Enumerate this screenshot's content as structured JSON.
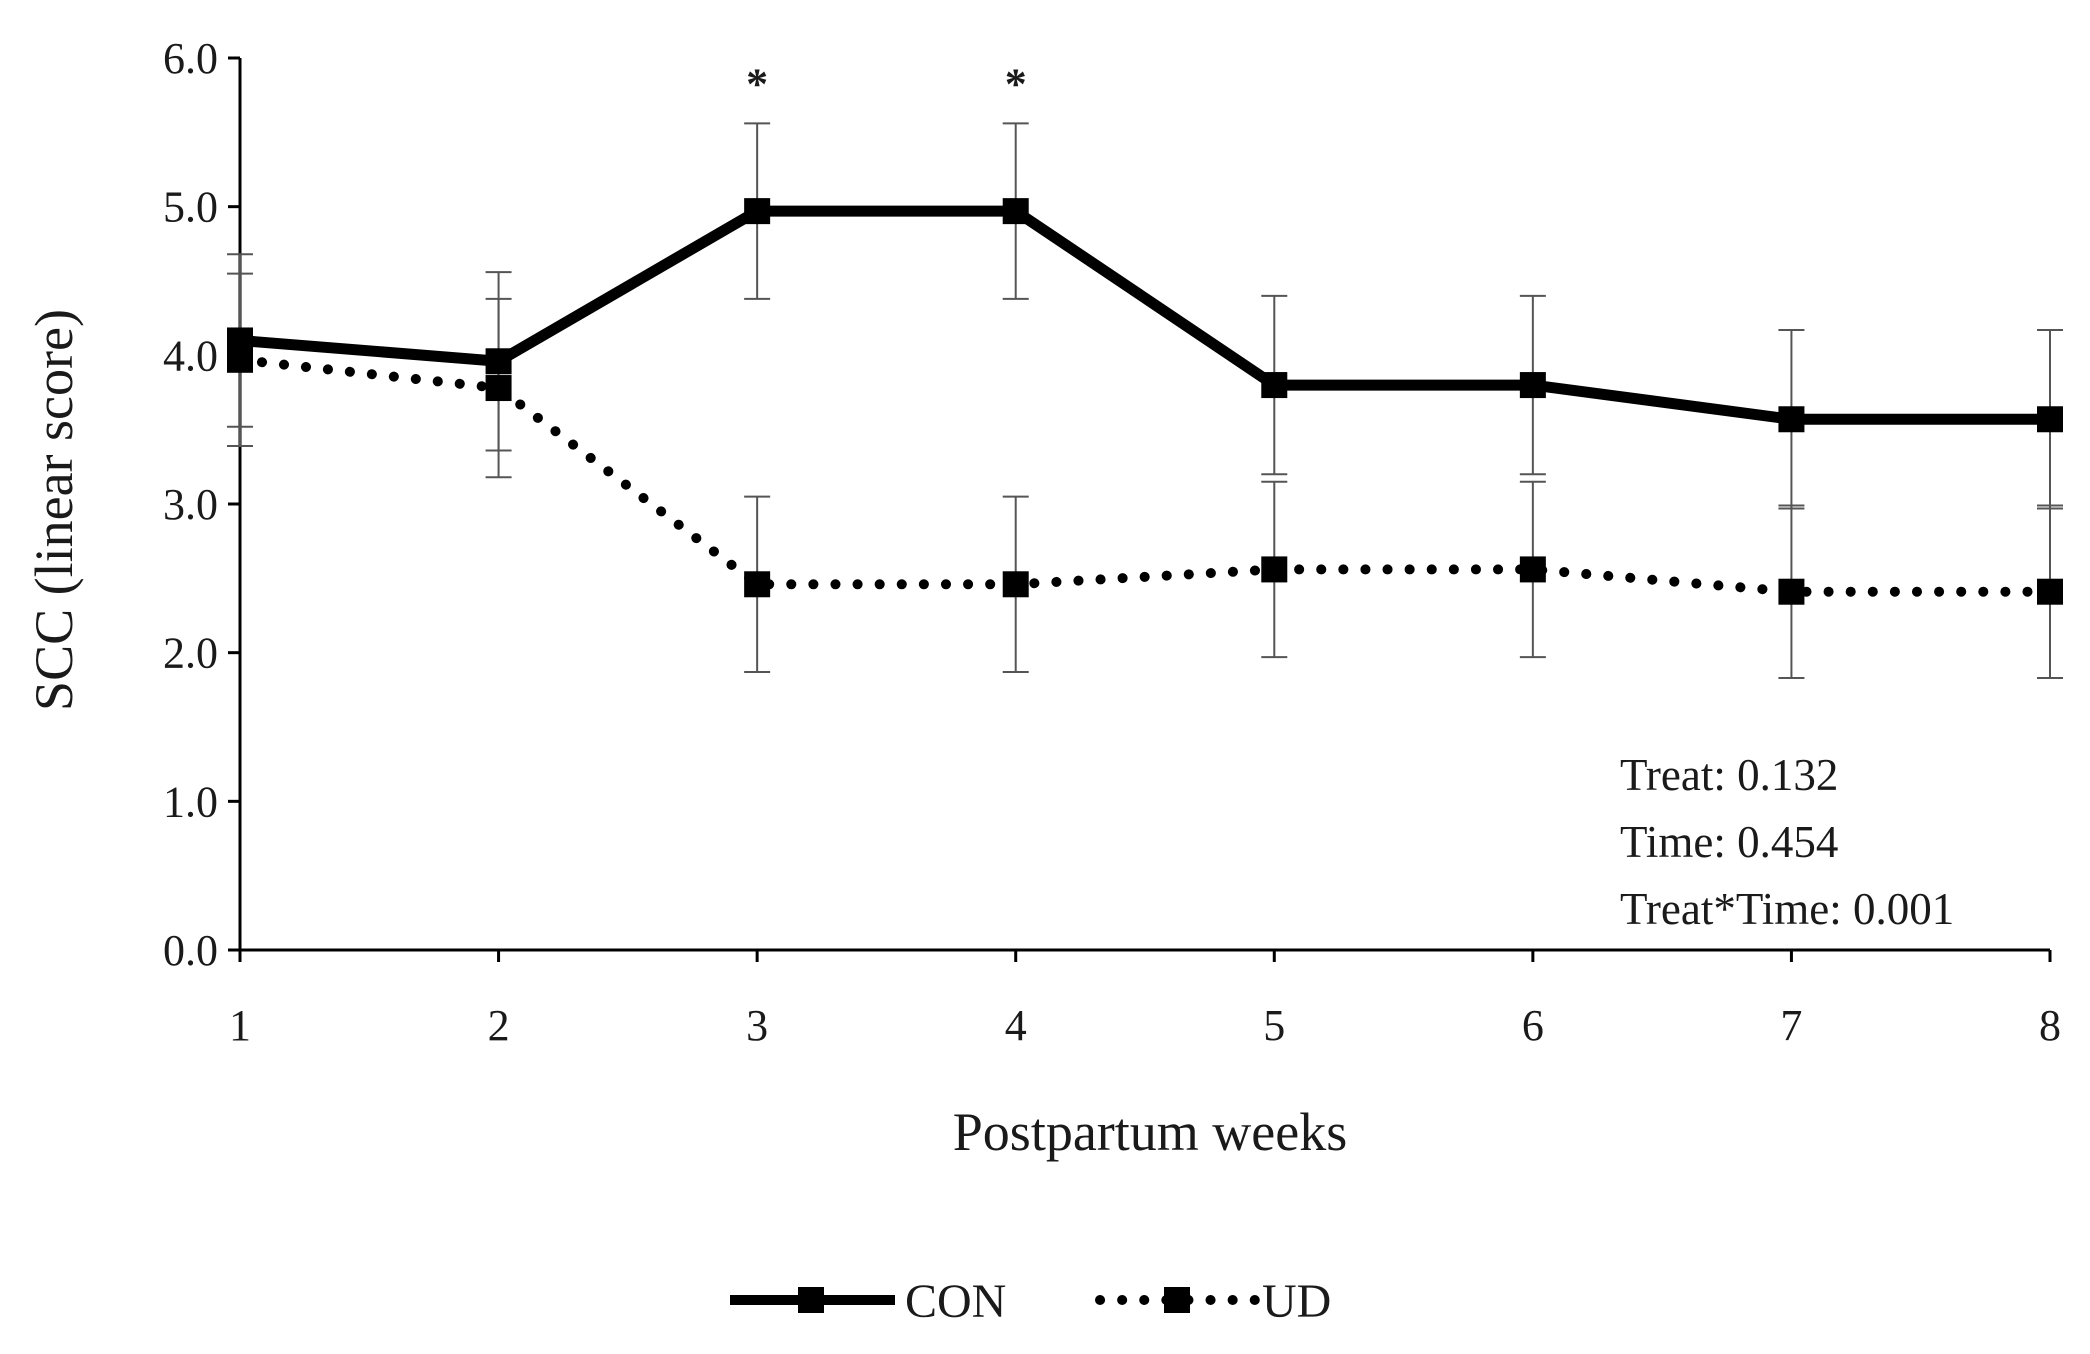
{
  "chart_data": {
    "type": "line",
    "title": "",
    "xlabel": "Postpartum weeks",
    "ylabel": "SCC (linear score)",
    "x": [
      1,
      2,
      3,
      4,
      5,
      6,
      7,
      8
    ],
    "xlim": [
      1,
      8
    ],
    "ylim": [
      0,
      6
    ],
    "y_ticks": [
      "0.0",
      "1.0",
      "2.0",
      "3.0",
      "4.0",
      "5.0",
      "6.0"
    ],
    "x_ticks": [
      "1",
      "2",
      "3",
      "4",
      "5",
      "6",
      "7",
      "8"
    ],
    "grid": false,
    "legend_position": "bottom-center",
    "series": [
      {
        "name": "CON",
        "style": "solid",
        "marker": "square",
        "color": "#000000",
        "values": [
          4.1,
          3.96,
          4.97,
          4.97,
          3.8,
          3.8,
          3.57,
          3.57
        ],
        "error": [
          0.58,
          0.6,
          0.59,
          0.59,
          0.6,
          0.6,
          0.6,
          0.6
        ]
      },
      {
        "name": "UD",
        "style": "dotted",
        "marker": "square",
        "color": "#000000",
        "values": [
          3.97,
          3.78,
          2.46,
          2.46,
          2.56,
          2.56,
          2.41,
          2.41
        ],
        "error": [
          0.58,
          0.6,
          0.59,
          0.59,
          0.59,
          0.59,
          0.58,
          0.58
        ]
      }
    ],
    "significance_markers": [
      {
        "x": 3,
        "label": "*"
      },
      {
        "x": 4,
        "label": "*"
      }
    ],
    "annotations": {
      "treat": "Treat: 0.132",
      "time": "Time: 0.454",
      "interaction": "Treat*Time: 0.001"
    }
  }
}
